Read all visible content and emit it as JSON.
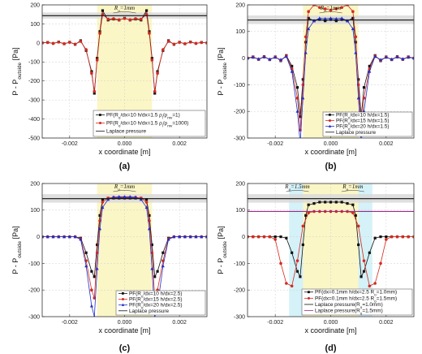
{
  "chart_data": [
    {
      "type": "line",
      "panel_label": "(a)",
      "xlabel": "x coordinate [m]",
      "ylabel": "P - P_outside [Pa]",
      "xlim": [
        -0.003,
        0.003
      ],
      "ylim": [
        -500,
        200
      ],
      "yticks": [
        -500,
        -400,
        -300,
        -200,
        -100,
        0,
        100,
        200
      ],
      "xticks": [
        -0.002,
        0.0,
        0.002
      ],
      "xtick_labels": [
        "-0.002",
        "0.000",
        "0.002"
      ],
      "grid": true,
      "bands": [
        {
          "x0": -0.001,
          "x1": 0.001,
          "color": "#fbf6c6"
        }
      ],
      "annotations": [
        {
          "text": "R_o=1mm",
          "x": 0.0
        }
      ],
      "laplace_band": [
        128,
        160
      ],
      "legend_position": "bottom-right",
      "series": [
        {
          "name": "PF(R_o/dx=10  h/dx=1.5  ρ_l/ρ_mv=1)",
          "color": "#111111",
          "marker": "square",
          "x": [
            -0.003,
            -0.0028,
            -0.0026,
            -0.0024,
            -0.0022,
            -0.002,
            -0.0018,
            -0.0016,
            -0.0014,
            -0.0012,
            -0.0011,
            -0.001,
            -0.0009,
            -0.0008,
            -0.0006,
            -0.0004,
            -0.0002,
            0.0,
            0.0002,
            0.0004,
            0.0006,
            0.0008,
            0.0009,
            0.001,
            0.0011,
            0.0012,
            0.0014,
            0.0016,
            0.0018,
            0.002,
            0.0022,
            0.0024,
            0.0026,
            0.0028,
            0.003
          ],
          "y": [
            0,
            3,
            -3,
            5,
            -5,
            4,
            -8,
            12,
            -40,
            -150,
            -265,
            -80,
            60,
            170,
            120,
            125,
            120,
            130,
            120,
            125,
            120,
            170,
            60,
            -80,
            -265,
            -150,
            -40,
            12,
            -8,
            4,
            -5,
            5,
            -3,
            3,
            0
          ]
        },
        {
          "name": "PF(R_o/dx=10  h/dx=1.5  ρ_l/ρ_mv=1000)",
          "color": "#d42a1e",
          "marker": "circle",
          "x": [
            -0.003,
            -0.0028,
            -0.0026,
            -0.0024,
            -0.0022,
            -0.002,
            -0.0018,
            -0.0016,
            -0.0014,
            -0.0012,
            -0.0011,
            -0.001,
            -0.0009,
            -0.0008,
            -0.0006,
            -0.0004,
            -0.0002,
            0.0,
            0.0002,
            0.0004,
            0.0006,
            0.0008,
            0.0009,
            0.001,
            0.0011,
            0.0012,
            0.0014,
            0.0016,
            0.0018,
            0.002,
            0.0022,
            0.0024,
            0.0026,
            0.0028,
            0.003
          ],
          "y": [
            0,
            2,
            -2,
            4,
            -4,
            3,
            -6,
            8,
            -35,
            -160,
            -255,
            -90,
            50,
            150,
            125,
            128,
            122,
            128,
            122,
            128,
            125,
            150,
            50,
            -90,
            -255,
            -160,
            -35,
            8,
            -6,
            3,
            -4,
            4,
            -2,
            2,
            0
          ]
        },
        {
          "name": "Laplace pressure",
          "color": "#111111",
          "marker": "none",
          "x": [
            -0.003,
            0.003
          ],
          "y": [
            143,
            143
          ]
        }
      ]
    },
    {
      "type": "line",
      "panel_label": "(b)",
      "xlabel": "x coordinate [m]",
      "ylabel": "P - P_outside [Pa]",
      "xlim": [
        -0.003,
        0.003
      ],
      "ylim": [
        -300,
        200
      ],
      "yticks": [
        -300,
        -200,
        -100,
        0,
        100,
        200
      ],
      "xticks": [
        -0.002,
        0.0,
        0.002
      ],
      "xtick_labels": [
        "-0.002",
        "0.000",
        "0.002"
      ],
      "grid": true,
      "bands": [
        {
          "x0": -0.001,
          "x1": 0.001,
          "color": "#fbf6c6"
        }
      ],
      "annotations": [
        {
          "text": "R_o=1mm",
          "x": 0.0
        }
      ],
      "laplace_band": [
        128,
        160
      ],
      "legend_position": "bottom-right",
      "series": [
        {
          "name": "PF(R_o/dx=10  h/dx=1.5)",
          "color": "#111111",
          "marker": "square",
          "x": [
            -0.003,
            -0.0028,
            -0.0026,
            -0.0024,
            -0.0022,
            -0.002,
            -0.0018,
            -0.0016,
            -0.0014,
            -0.0012,
            -0.0011,
            -0.001,
            -0.0009,
            -0.0008,
            -0.0006,
            -0.0004,
            -0.0002,
            0.0,
            0.0002,
            0.0004,
            0.0006,
            0.0008,
            0.0009,
            0.001,
            0.0011,
            0.0012,
            0.0014,
            0.0016,
            0.0018,
            0.002,
            0.0022,
            0.0024,
            0.0026,
            0.0028,
            0.003
          ],
          "y": [
            0,
            5,
            -5,
            6,
            -6,
            5,
            -10,
            10,
            -30,
            -110,
            -220,
            -80,
            60,
            150,
            140,
            145,
            140,
            145,
            140,
            145,
            140,
            150,
            60,
            -80,
            -220,
            -110,
            -30,
            10,
            -10,
            5,
            -6,
            6,
            -5,
            5,
            0
          ]
        },
        {
          "name": "PF(R_o/dx=15  h/dx=1.5)",
          "color": "#d42a1e",
          "marker": "circle",
          "x": [
            -0.003,
            -0.0028,
            -0.0026,
            -0.0024,
            -0.0022,
            -0.002,
            -0.0018,
            -0.0016,
            -0.0014,
            -0.0012,
            -0.0011,
            -0.001,
            -0.0009,
            -0.0008,
            -0.0006,
            -0.0004,
            -0.0002,
            0.0,
            0.0002,
            0.0004,
            0.0006,
            0.0008,
            0.0009,
            0.001,
            0.0011,
            0.0012,
            0.0014,
            0.0016,
            0.0018,
            0.002,
            0.0022,
            0.0024,
            0.0026,
            0.0028,
            0.003
          ],
          "y": [
            0,
            4,
            -4,
            5,
            -5,
            4,
            -8,
            8,
            -40,
            -150,
            -270,
            -100,
            80,
            175,
            200,
            190,
            185,
            180,
            185,
            190,
            200,
            175,
            80,
            -100,
            -270,
            -150,
            -40,
            8,
            -8,
            4,
            -5,
            5,
            -4,
            4,
            0
          ]
        },
        {
          "name": "PF(R_o/dx=20  h/dx=1.5)",
          "color": "#1f2ec9",
          "marker": "triangle",
          "x": [
            -0.003,
            -0.0028,
            -0.0026,
            -0.0024,
            -0.0022,
            -0.002,
            -0.0018,
            -0.0016,
            -0.0014,
            -0.0012,
            -0.0011,
            -0.001,
            -0.0009,
            -0.0008,
            -0.0006,
            -0.0004,
            -0.0002,
            0.0,
            0.0002,
            0.0004,
            0.0006,
            0.0008,
            0.0009,
            0.001,
            0.0011,
            0.0012,
            0.0014,
            0.0016,
            0.0018,
            0.002,
            0.0022,
            0.0024,
            0.0026,
            0.0028,
            0.003
          ],
          "y": [
            0,
            3,
            -3,
            4,
            -4,
            3,
            -6,
            6,
            -50,
            -200,
            -320,
            -150,
            20,
            110,
            140,
            150,
            148,
            150,
            148,
            150,
            140,
            110,
            20,
            -150,
            -320,
            -200,
            -50,
            6,
            -6,
            3,
            -4,
            4,
            -3,
            3,
            0
          ]
        },
        {
          "name": "Laplace pressure",
          "color": "#111111",
          "marker": "none",
          "x": [
            -0.003,
            0.003
          ],
          "y": [
            143,
            143
          ]
        }
      ]
    },
    {
      "type": "line",
      "panel_label": "(c)",
      "xlabel": "x coordinate [m]",
      "ylabel": "P - P_outside [Pa]",
      "xlim": [
        -0.003,
        0.003
      ],
      "ylim": [
        -300,
        200
      ],
      "yticks": [
        -300,
        -200,
        -100,
        0,
        100,
        200
      ],
      "xticks": [
        -0.002,
        0.0,
        0.002
      ],
      "xtick_labels": [
        "-0.002",
        "0.000",
        "0.002"
      ],
      "grid": true,
      "bands": [
        {
          "x0": -0.001,
          "x1": 0.001,
          "color": "#fbf6c6"
        }
      ],
      "annotations": [
        {
          "text": "R_o=1mm",
          "x": 0.0
        }
      ],
      "laplace_band": [
        128,
        160
      ],
      "legend_position": "bottom-right",
      "series": [
        {
          "name": "PF(R_o/dx=10  h/dx=2.5)",
          "color": "#111111",
          "marker": "square",
          "x": [
            -0.003,
            -0.0028,
            -0.0026,
            -0.0024,
            -0.0022,
            -0.002,
            -0.0018,
            -0.0016,
            -0.0014,
            -0.0012,
            -0.0011,
            -0.001,
            -0.0009,
            -0.0008,
            -0.0006,
            -0.0004,
            -0.0002,
            0.0,
            0.0002,
            0.0004,
            0.0006,
            0.0008,
            0.0009,
            0.001,
            0.0011,
            0.0012,
            0.0014,
            0.0016,
            0.0018,
            0.002,
            0.0022,
            0.0024,
            0.0026,
            0.0028,
            0.003
          ],
          "y": [
            0,
            0,
            0,
            0,
            0,
            0,
            0,
            -5,
            -60,
            -130,
            -150,
            -30,
            80,
            140,
            145,
            145,
            145,
            145,
            145,
            145,
            145,
            140,
            80,
            -30,
            -150,
            -130,
            -60,
            -5,
            0,
            0,
            0,
            0,
            0,
            0,
            0
          ]
        },
        {
          "name": "PF(R_o/dx=15  h/dx=2.5)",
          "color": "#d42a1e",
          "marker": "circle",
          "x": [
            -0.003,
            -0.0028,
            -0.0026,
            -0.0024,
            -0.0022,
            -0.002,
            -0.0018,
            -0.0016,
            -0.0014,
            -0.0012,
            -0.0011,
            -0.001,
            -0.0009,
            -0.0008,
            -0.0006,
            -0.0004,
            -0.0002,
            0.0,
            0.0002,
            0.0004,
            0.0006,
            0.0008,
            0.0009,
            0.001,
            0.0011,
            0.0012,
            0.0014,
            0.0016,
            0.0018,
            0.002,
            0.0022,
            0.0024,
            0.0026,
            0.0028,
            0.003
          ],
          "y": [
            0,
            0,
            0,
            0,
            0,
            0,
            0,
            -8,
            -90,
            -200,
            -230,
            -60,
            60,
            130,
            145,
            148,
            148,
            148,
            148,
            148,
            145,
            130,
            60,
            -60,
            -230,
            -200,
            -90,
            -8,
            0,
            0,
            0,
            0,
            0,
            0,
            0
          ]
        },
        {
          "name": "PF(R_o/dx=20  h/dx=2.5)",
          "color": "#1f2ec9",
          "marker": "triangle",
          "x": [
            -0.003,
            -0.0028,
            -0.0026,
            -0.0024,
            -0.0022,
            -0.002,
            -0.0018,
            -0.0016,
            -0.0014,
            -0.0012,
            -0.0011,
            -0.001,
            -0.0009,
            -0.0008,
            -0.0006,
            -0.0004,
            -0.0002,
            0.0,
            0.0002,
            0.0004,
            0.0006,
            0.0008,
            0.0009,
            0.001,
            0.0011,
            0.0012,
            0.0014,
            0.0016,
            0.0018,
            0.002,
            0.0022,
            0.0024,
            0.0026,
            0.0028,
            0.003
          ],
          "y": [
            0,
            0,
            0,
            0,
            0,
            0,
            0,
            -10,
            -110,
            -260,
            -300,
            -120,
            30,
            110,
            140,
            148,
            150,
            150,
            150,
            148,
            140,
            110,
            30,
            -120,
            -300,
            -260,
            -110,
            -10,
            0,
            0,
            0,
            0,
            0,
            0,
            0
          ]
        },
        {
          "name": "Laplace pressure",
          "color": "#111111",
          "marker": "none",
          "x": [
            -0.003,
            0.003
          ],
          "y": [
            143,
            143
          ]
        }
      ]
    },
    {
      "type": "line",
      "panel_label": "(d)",
      "xlabel": "x coordinate [m]",
      "ylabel": "P - P_outside [Pa]",
      "xlim": [
        -0.003,
        0.003
      ],
      "ylim": [
        -300,
        200
      ],
      "yticks": [
        -300,
        -200,
        -100,
        0,
        100,
        200
      ],
      "xticks": [
        -0.002,
        0.0,
        0.002
      ],
      "xtick_labels": [
        "-0.002",
        "0.000",
        "0.002"
      ],
      "grid": true,
      "bands": [
        {
          "x0": -0.0015,
          "x1": 0.0015,
          "color": "#d4f2f8"
        },
        {
          "x0": -0.001,
          "x1": 0.001,
          "color": "#fbf6c6"
        }
      ],
      "annotations": [
        {
          "text": "R_o=1.5mm",
          "x": -0.0012
        },
        {
          "text": "R_o=1mm",
          "x": 0.0008
        }
      ],
      "laplace_band": [
        128,
        160
      ],
      "legend_position": "bottom-right",
      "series": [
        {
          "name": "PF(dx=0.1mm  h/dx=2.5  R_o=1.0mm)",
          "color": "#111111",
          "marker": "square",
          "x": [
            -0.003,
            -0.0028,
            -0.0026,
            -0.0024,
            -0.0022,
            -0.002,
            -0.0018,
            -0.0016,
            -0.0014,
            -0.0012,
            -0.0011,
            -0.001,
            -0.0009,
            -0.0008,
            -0.0006,
            -0.0004,
            -0.0002,
            0.0,
            0.0002,
            0.0004,
            0.0006,
            0.0008,
            0.0009,
            0.001,
            0.0011,
            0.0012,
            0.0014,
            0.0016,
            0.0018,
            0.002,
            0.0022,
            0.0024,
            0.0026,
            0.0028,
            0.003
          ],
          "y": [
            0,
            0,
            0,
            0,
            0,
            0,
            0,
            -5,
            -60,
            -130,
            -150,
            -30,
            80,
            120,
            125,
            130,
            130,
            130,
            130,
            130,
            125,
            120,
            80,
            -30,
            -150,
            -130,
            -60,
            -5,
            0,
            0,
            0,
            0,
            0,
            0,
            0
          ]
        },
        {
          "name": "PF(dx=0.1mm  h/dx=2.5  R_o=1.5mm)",
          "color": "#d42a1e",
          "marker": "circle",
          "x": [
            -0.003,
            -0.0028,
            -0.0026,
            -0.0024,
            -0.0022,
            -0.002,
            -0.0018,
            -0.0016,
            -0.0014,
            -0.0012,
            -0.001,
            -0.0008,
            -0.0006,
            -0.0004,
            -0.0002,
            0.0,
            0.0002,
            0.0004,
            0.0006,
            0.0008,
            0.001,
            0.0012,
            0.0014,
            0.0016,
            0.0018,
            0.002,
            0.0022,
            0.0024,
            0.0026,
            0.0028,
            0.003
          ],
          "y": [
            0,
            0,
            0,
            0,
            0,
            -10,
            -100,
            -175,
            -185,
            -90,
            40,
            90,
            95,
            95,
            95,
            95,
            95,
            95,
            95,
            90,
            40,
            -90,
            -185,
            -175,
            -100,
            -10,
            0,
            0,
            0,
            0,
            0
          ]
        },
        {
          "name": "Laplace pressure(R_o=1.0mm)",
          "color": "#111111",
          "marker": "none",
          "x": [
            -0.003,
            0.003
          ],
          "y": [
            143,
            143
          ]
        },
        {
          "name": "Laplace pressure(R_o=1.5mm)",
          "color": "#9c2a8a",
          "marker": "none",
          "x": [
            -0.003,
            0.003
          ],
          "y": [
            95,
            95
          ]
        }
      ]
    }
  ]
}
